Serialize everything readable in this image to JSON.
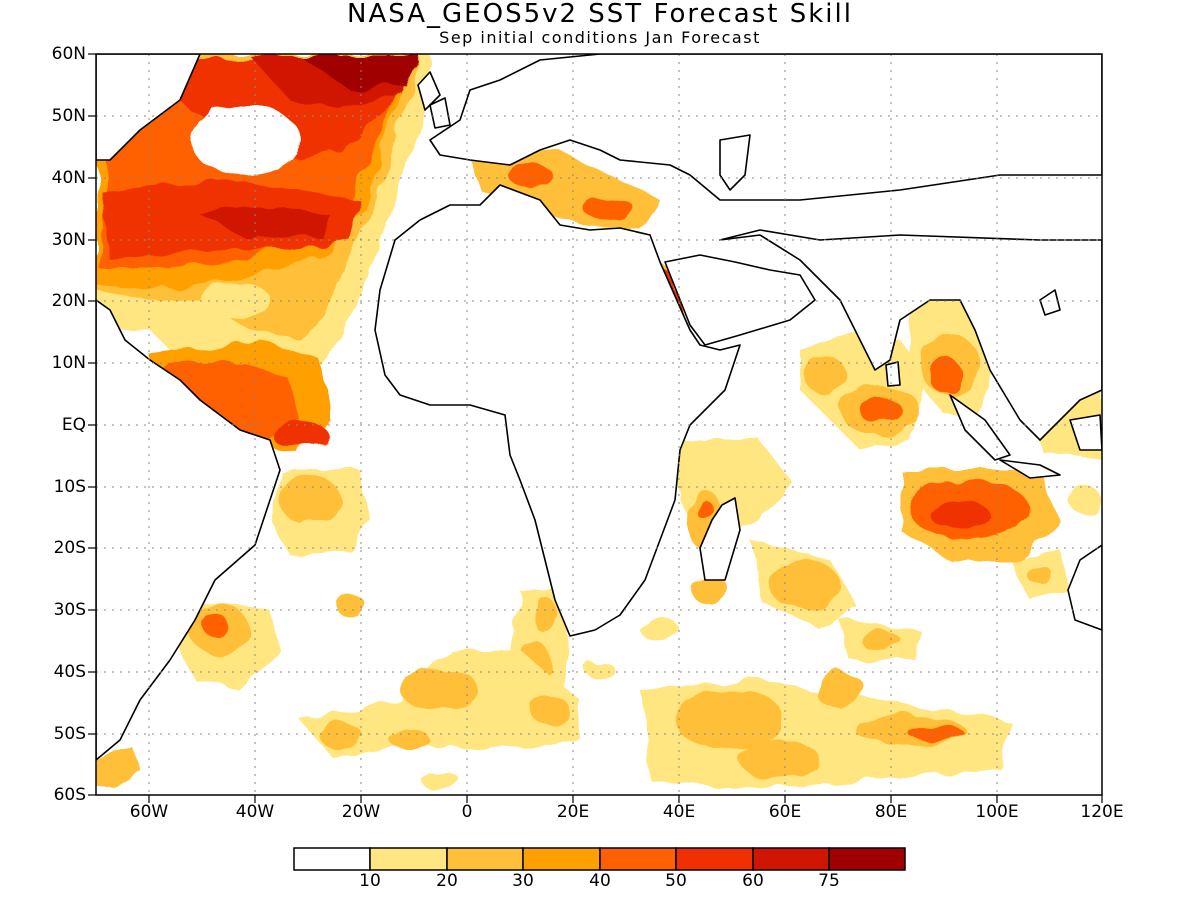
{
  "title": "NASA_GEOS5v2 SST Forecast Skill",
  "subtitle": "Sep initial conditions  Jan Forecast",
  "axes": {
    "lon_range": [
      -70,
      120
    ],
    "lat_range": [
      -60,
      60
    ],
    "lat_labels": [
      "60N",
      "50N",
      "40N",
      "30N",
      "20N",
      "10N",
      "EQ",
      "10S",
      "20S",
      "30S",
      "40S",
      "50S",
      "60S"
    ],
    "lat_values": [
      60,
      50,
      40,
      30,
      20,
      10,
      0,
      -10,
      -20,
      -30,
      -40,
      -50,
      -60
    ],
    "lon_labels": [
      "60W",
      "40W",
      "20W",
      "0",
      "20E",
      "40E",
      "60E",
      "80E",
      "100E",
      "120E"
    ],
    "lon_values": [
      -60,
      -40,
      -20,
      0,
      20,
      40,
      60,
      80,
      100,
      120
    ],
    "grid": "dotted"
  },
  "colorbar": {
    "colors": [
      "#ffffff",
      "#ffe680",
      "#ffbf38",
      "#ffa000",
      "#ff6000",
      "#f03000",
      "#d01500",
      "#a00000"
    ],
    "labels": [
      "10",
      "20",
      "30",
      "40",
      "50",
      "60",
      "75"
    ]
  }
}
